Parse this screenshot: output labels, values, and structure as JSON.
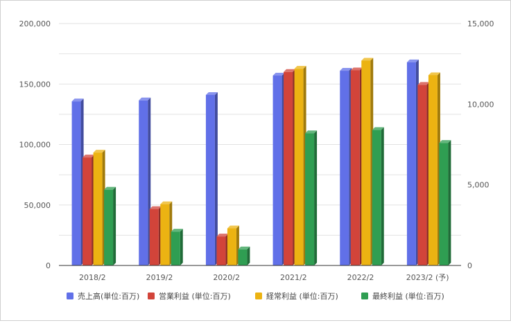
{
  "chart_data": {
    "type": "bar",
    "categories": [
      "2018/2",
      "2019/2",
      "2020/2",
      "2021/2",
      "2022/2",
      "2023/2 (予)"
    ],
    "series": [
      {
        "name": "売上高(単位:百万)",
        "axis": "left",
        "color": "#6170e8",
        "values": [
          135700,
          136500,
          141000,
          157000,
          161000,
          168000
        ]
      },
      {
        "name": "営業利益 (単位:百万)",
        "axis": "right",
        "color": "#d2443a",
        "values": [
          6700,
          3500,
          1800,
          12000,
          12100,
          11200
        ]
      },
      {
        "name": "経常利益 (単位:百万)",
        "axis": "right",
        "color": "#ecb312",
        "values": [
          7000,
          3800,
          2300,
          12200,
          12700,
          11800
        ]
      },
      {
        "name": "最終利益 (単位:百万)",
        "axis": "right",
        "color": "#2f9e52",
        "values": [
          4700,
          2100,
          1000,
          8200,
          8400,
          7600
        ]
      }
    ],
    "y_left": {
      "ylim": [
        0,
        200000
      ],
      "ticks": [
        "0",
        "50,000",
        "100,000",
        "150,000",
        "200,000"
      ],
      "tick_values": [
        0,
        50000,
        100000,
        150000,
        200000
      ]
    },
    "y_right": {
      "ylim": [
        0,
        15000
      ],
      "ticks": [
        "0",
        "5,000",
        "10,000",
        "15,000"
      ],
      "tick_values": [
        0,
        5000,
        10000,
        15000
      ]
    },
    "grid": true,
    "legend": "bottom",
    "style": "3d-bar"
  }
}
